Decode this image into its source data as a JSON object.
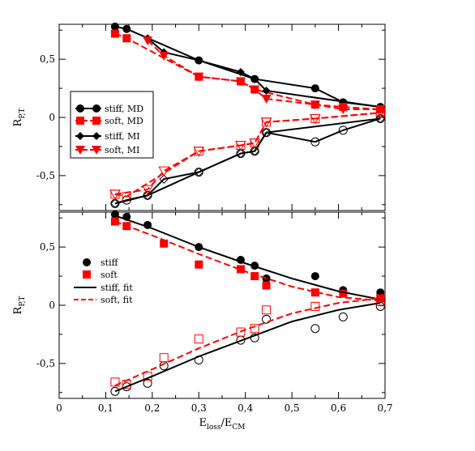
{
  "chart_data": [
    {
      "type": "line",
      "panel": "top",
      "xlim": [
        0,
        0.7
      ],
      "ylim": [
        -0.8,
        0.8
      ],
      "ylabel_main": "R",
      "ylabel_sub": "P,T",
      "yticks": [
        -0.5,
        0,
        0.5
      ],
      "ytick_labels": [
        "-0,5",
        "0",
        "0,5"
      ],
      "grid": false,
      "legend_placement": "center-left",
      "legend": [
        {
          "series": "stiff_md",
          "label": "stiff, MD"
        },
        {
          "series": "soft_md",
          "label": "soft, MD"
        },
        {
          "series": "stiff_mi",
          "label": "stiff, MI"
        },
        {
          "series": "soft_mi",
          "label": "soft, MI"
        }
      ],
      "series": [
        {
          "key": "stiff_md",
          "name": "stiff, MD",
          "color": "#000000",
          "marker": "circle-filled",
          "dash": "solid",
          "x": [
            0.12,
            0.145,
            0.3,
            0.42,
            0.55,
            0.61,
            0.69
          ],
          "y": [
            0.78,
            0.76,
            0.49,
            0.33,
            0.25,
            0.13,
            0.09
          ]
        },
        {
          "key": "stiff_md_lower",
          "name": "",
          "color": "#000000",
          "marker": "circle-open",
          "dash": "solid",
          "x": [
            0.12,
            0.145,
            0.19,
            0.3,
            0.39,
            0.42,
            0.445,
            0.55,
            0.61,
            0.69
          ],
          "y": [
            -0.74,
            -0.71,
            -0.67,
            -0.47,
            -0.31,
            -0.29,
            -0.13,
            -0.21,
            -0.11,
            -0.01
          ]
        },
        {
          "key": "soft_md",
          "name": "soft, MD",
          "color": "#ff0000",
          "marker": "square-filled",
          "dash": "dashed",
          "x": [
            0.12,
            0.145,
            0.3,
            0.39,
            0.42,
            0.55,
            0.61,
            0.69
          ],
          "y": [
            0.72,
            0.68,
            0.35,
            0.31,
            0.24,
            0.11,
            0.09,
            0.07
          ]
        },
        {
          "key": "soft_md_lower",
          "name": "",
          "color": "#ff0000",
          "marker": "square-open",
          "dash": "dashed",
          "x": [
            0.12,
            0.145,
            0.3,
            0.39,
            0.42,
            0.445,
            0.55,
            0.69
          ],
          "y": [
            -0.66,
            -0.68,
            -0.29,
            -0.24,
            -0.22,
            -0.04,
            -0.01,
            0.04
          ]
        },
        {
          "key": "stiff_mi",
          "name": "stiff, MI",
          "color": "#000000",
          "marker": "diamond-filled",
          "dash": "solid",
          "x": [
            0.19,
            0.225,
            0.3,
            0.39,
            0.42,
            0.445,
            0.69
          ],
          "y": [
            0.68,
            0.56,
            0.49,
            0.39,
            0.33,
            0.23,
            0.09
          ]
        },
        {
          "key": "stiff_mi_lower",
          "name": "",
          "color": "#000000",
          "marker": "diamond-open",
          "dash": "solid",
          "x": [
            0.12,
            0.19,
            0.225,
            0.3,
            0.39,
            0.42,
            0.445,
            0.69
          ],
          "y": [
            -0.74,
            -0.67,
            -0.53,
            -0.47,
            -0.31,
            -0.29,
            -0.13,
            -0.01
          ]
        },
        {
          "key": "soft_mi",
          "name": "soft, MI",
          "color": "#ff0000",
          "marker": "triangle-down-filled",
          "dash": "dashed",
          "x": [
            0.19,
            0.225,
            0.3,
            0.39,
            0.42,
            0.445,
            0.55,
            0.61,
            0.69
          ],
          "y": [
            0.66,
            0.53,
            0.35,
            0.31,
            0.24,
            0.16,
            0.11,
            0.07,
            0.07
          ]
        },
        {
          "key": "soft_mi_lower",
          "name": "",
          "color": "#ff0000",
          "marker": "triangle-down-open",
          "dash": "dashed",
          "x": [
            0.12,
            0.19,
            0.225,
            0.3,
            0.39,
            0.42,
            0.445,
            0.55,
            0.69
          ],
          "y": [
            -0.66,
            -0.62,
            -0.46,
            -0.29,
            -0.24,
            -0.22,
            -0.04,
            -0.01,
            0.04
          ]
        }
      ]
    },
    {
      "type": "scatter",
      "panel": "bottom",
      "xlim": [
        0,
        0.7
      ],
      "ylim": [
        -0.8,
        0.8
      ],
      "xticks": [
        0,
        0.1,
        0.2,
        0.3,
        0.4,
        0.5,
        0.6,
        0.7
      ],
      "xtick_labels": [
        "0",
        "0,1",
        "0,2",
        "0,3",
        "0,4",
        "0,5",
        "0,6",
        "0,7"
      ],
      "yticks": [
        -0.5,
        0,
        0.5
      ],
      "ytick_labels": [
        "-0,5",
        "0",
        "0,5"
      ],
      "xlabel_main": "E",
      "xlabel_sub1": "loss",
      "xlabel_mid": "/E",
      "xlabel_sub2": "CM",
      "ylabel_main": "R",
      "ylabel_sub": "P,T",
      "grid": false,
      "legend_placement": "center-left",
      "legend": [
        {
          "series": "stiff",
          "label": "stiff"
        },
        {
          "series": "soft",
          "label": "soft"
        },
        {
          "series": "stiff_fit",
          "label": "stiff, fit"
        },
        {
          "series": "soft_fit",
          "label": "soft, fit"
        }
      ],
      "series": [
        {
          "key": "stiff",
          "name": "stiff",
          "color": "#000000",
          "marker": "circle-filled",
          "x": [
            0.12,
            0.145,
            0.19,
            0.3,
            0.39,
            0.42,
            0.445,
            0.55,
            0.61,
            0.69
          ],
          "y": [
            0.78,
            0.76,
            0.69,
            0.5,
            0.39,
            0.34,
            0.23,
            0.25,
            0.13,
            0.11
          ]
        },
        {
          "key": "stiff_lower",
          "name": "",
          "color": "#000000",
          "marker": "circle-open",
          "x": [
            0.12,
            0.145,
            0.19,
            0.225,
            0.3,
            0.39,
            0.42,
            0.445,
            0.55,
            0.61,
            0.69
          ],
          "y": [
            -0.74,
            -0.7,
            -0.67,
            -0.52,
            -0.47,
            -0.3,
            -0.28,
            -0.12,
            -0.2,
            -0.1,
            -0.01
          ]
        },
        {
          "key": "soft",
          "name": "soft",
          "color": "#ff0000",
          "marker": "square-filled",
          "x": [
            0.12,
            0.145,
            0.225,
            0.3,
            0.39,
            0.42,
            0.445,
            0.55,
            0.61,
            0.69
          ],
          "y": [
            0.72,
            0.68,
            0.53,
            0.35,
            0.31,
            0.25,
            0.17,
            0.11,
            0.1,
            0.06
          ]
        },
        {
          "key": "soft_lower",
          "name": "",
          "color": "#ff0000",
          "marker": "square-open",
          "x": [
            0.12,
            0.145,
            0.19,
            0.225,
            0.3,
            0.39,
            0.42,
            0.445,
            0.55,
            0.69
          ],
          "y": [
            -0.66,
            -0.68,
            -0.61,
            -0.45,
            -0.29,
            -0.23,
            -0.2,
            -0.04,
            -0.01,
            0.03
          ]
        },
        {
          "key": "stiff_fit",
          "name": "stiff, fit",
          "color": "#000000",
          "marker": "none",
          "dash": "solid",
          "x": [
            0.12,
            0.2,
            0.3,
            0.4,
            0.5,
            0.6,
            0.69
          ],
          "y": [
            0.77,
            0.66,
            0.5,
            0.36,
            0.23,
            0.12,
            0.05
          ]
        },
        {
          "key": "stiff_fit_lower",
          "name": "",
          "color": "#000000",
          "marker": "none",
          "dash": "solid",
          "x": [
            0.12,
            0.2,
            0.3,
            0.4,
            0.5,
            0.6,
            0.69
          ],
          "y": [
            -0.74,
            -0.61,
            -0.44,
            -0.29,
            -0.14,
            -0.04,
            0.02
          ]
        },
        {
          "key": "soft_fit",
          "name": "soft, fit",
          "color": "#ff0000",
          "marker": "none",
          "dash": "dashed",
          "x": [
            0.12,
            0.2,
            0.3,
            0.4,
            0.5,
            0.6,
            0.69
          ],
          "y": [
            0.72,
            0.6,
            0.44,
            0.29,
            0.16,
            0.07,
            0.04
          ]
        },
        {
          "key": "soft_fit_lower",
          "name": "",
          "color": "#ff0000",
          "marker": "none",
          "dash": "dashed",
          "x": [
            0.12,
            0.2,
            0.3,
            0.4,
            0.5,
            0.6,
            0.69
          ],
          "y": [
            -0.69,
            -0.55,
            -0.37,
            -0.21,
            -0.07,
            0.02,
            0.06
          ]
        }
      ]
    }
  ]
}
